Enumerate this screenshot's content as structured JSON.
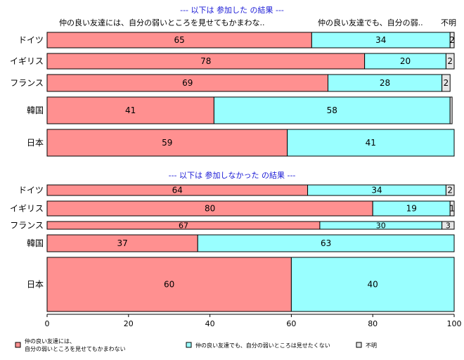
{
  "chart_data": {
    "type": "bar",
    "orientation": "horizontal",
    "stacked": true,
    "xlim": [
      0,
      100
    ],
    "x_ticks": [
      "0",
      "20",
      "40",
      "60",
      "80",
      "100"
    ],
    "series_names": [
      "仲の良い友達には、自分の弱いところを見せてもかまわない",
      "仲の良い友達でも、自分の弱いところは見せたくない",
      "不明"
    ],
    "colors": [
      "#ff9090",
      "#99ffff",
      "#e6e6e6"
    ],
    "legend": {
      "placement": "bottom",
      "items": [
        {
          "line1": "仲の良い友達には、",
          "line2": "自分の弱いところを見せてもかまわない"
        },
        {
          "line1": "仲の良い友達でも、自分の弱いところは見せたくない",
          "line2": ""
        },
        {
          "line1": "不明",
          "line2": ""
        }
      ]
    },
    "panels": [
      {
        "title": "--- 以下は 参加した の結果 ---",
        "column_headers": [
          "仲の良い友達には、自分の弱いところを見せてもかまわな..",
          "仲の良い友達でも、自分の弱..",
          "不明"
        ],
        "categories": [
          "ドイツ",
          "イギリス",
          "フランス",
          "韓国",
          "日本"
        ],
        "series": [
          {
            "values": [
              65,
              78,
              69,
              41,
              59
            ]
          },
          {
            "values": [
              34,
              20,
              28,
              58,
              41
            ]
          },
          {
            "values": [
              2,
              2,
              2,
              0.5,
              0.3
            ]
          }
        ],
        "data_labels": [
          [
            "65",
            "78",
            "69",
            "41",
            "59"
          ],
          [
            "34",
            "20",
            "28",
            "58",
            "41"
          ],
          [
            "2",
            "2",
            "2",
            "",
            ""
          ]
        ]
      },
      {
        "title": "--- 以下は 参加しなかった の結果 ---",
        "column_headers": [],
        "categories": [
          "ドイツ",
          "イギリス",
          "フランス",
          "韓国",
          "日本"
        ],
        "series": [
          {
            "values": [
              64,
              80,
              67,
              37,
              60
            ]
          },
          {
            "values": [
              34,
              19,
              30,
              63,
              40
            ]
          },
          {
            "values": [
              2,
              1,
              3,
              0.5,
              0.5
            ]
          }
        ],
        "data_labels": [
          [
            "64",
            "80",
            "67",
            "37",
            "60"
          ],
          [
            "34",
            "19",
            "30",
            "63",
            "40"
          ],
          [
            "2",
            "1",
            "3",
            "",
            ""
          ]
        ]
      }
    ]
  }
}
